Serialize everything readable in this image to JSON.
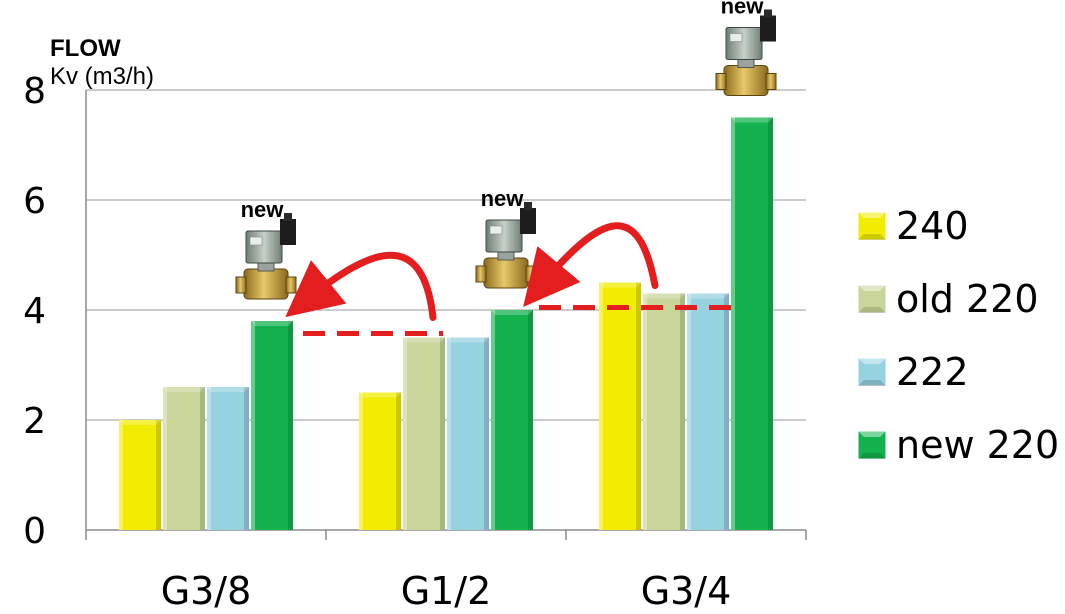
{
  "chart_data": {
    "type": "bar",
    "title": "",
    "ylabel": "FLOW",
    "ylabel_sub": "Kv (m3/h)",
    "xlabel": "",
    "ylim": [
      0,
      8
    ],
    "yticks": [
      "0",
      "2",
      "4",
      "6",
      "8"
    ],
    "grid": true,
    "legend_position": "right",
    "categories": [
      "G3/8",
      "G1/2",
      "G3/4"
    ],
    "series": [
      {
        "name": "240",
        "color": "#f2ec00",
        "values": [
          2.0,
          2.5,
          4.5
        ]
      },
      {
        "name": "old 220",
        "color": "#c8d69a",
        "values": [
          2.6,
          3.5,
          4.3
        ]
      },
      {
        "name": "222",
        "color": "#96d2e0",
        "values": [
          2.6,
          3.5,
          4.3
        ]
      },
      {
        "name": "new 220",
        "color": "#13b24e",
        "values": [
          3.8,
          4.0,
          7.5
        ]
      }
    ],
    "annotations": [
      {
        "text": "new",
        "category": "G3/8"
      },
      {
        "text": "new",
        "category": "G1/2"
      },
      {
        "text": "new",
        "category": "G3/4"
      }
    ],
    "arrows_color": "#e41e1e"
  }
}
